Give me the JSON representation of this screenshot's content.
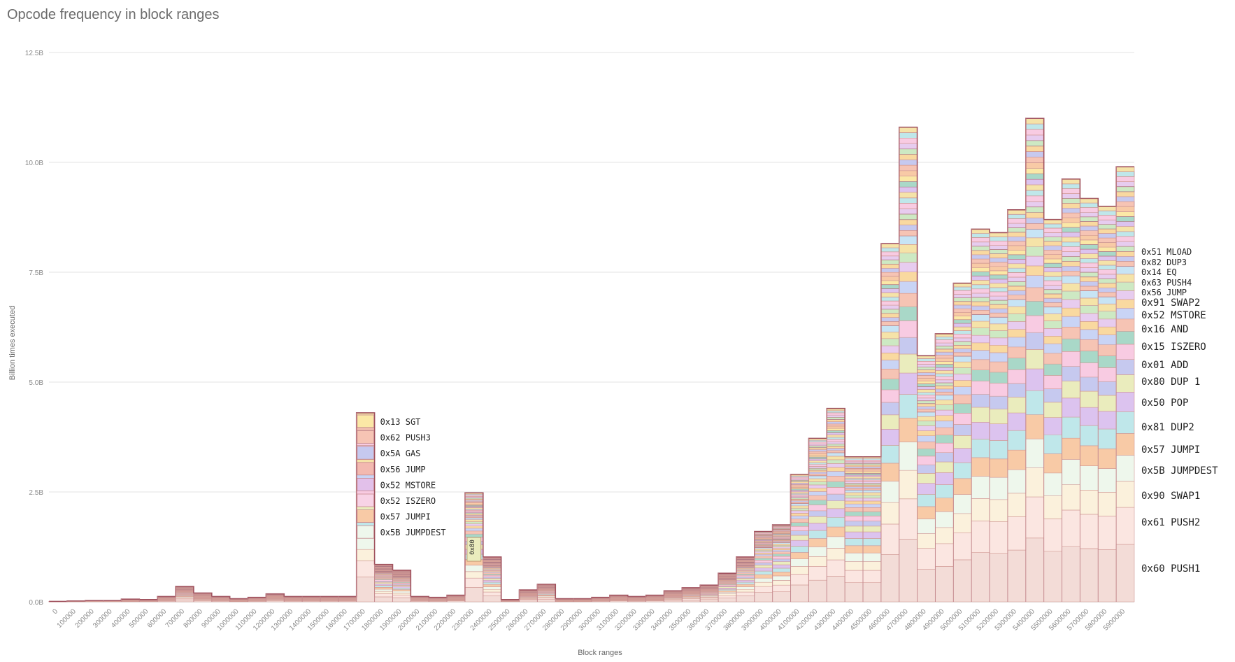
{
  "chart_data": {
    "type": "area",
    "stacked": true,
    "step": true,
    "title": "Opcode frequency in block ranges",
    "xlabel": "Block ranges",
    "ylabel": "Billion times executed",
    "ylim": [
      0,
      12.5
    ],
    "yticks": [
      "0.0B",
      "2.5B",
      "5.0B",
      "7.5B",
      "10.0B",
      "12.5B"
    ],
    "ytick_values": [
      0,
      2.5,
      5,
      7.5,
      10,
      12.5
    ],
    "grid": true,
    "categories": [
      "0",
      "100000",
      "200000",
      "300000",
      "400000",
      "500000",
      "600000",
      "700000",
      "800000",
      "900000",
      "1000000",
      "1100000",
      "1200000",
      "1300000",
      "1400000",
      "1500000",
      "1600000",
      "1700000",
      "1800000",
      "1900000",
      "2000000",
      "2100000",
      "2200000",
      "2300000",
      "2400000",
      "2500000",
      "2600000",
      "2700000",
      "2800000",
      "2900000",
      "3000000",
      "3100000",
      "3200000",
      "3300000",
      "3400000",
      "3500000",
      "3600000",
      "3700000",
      "3800000",
      "3900000",
      "4000000",
      "4100000",
      "4200000",
      "4300000",
      "4400000",
      "4500000",
      "4600000",
      "4700000",
      "4800000",
      "4900000",
      "5000000",
      "5100000",
      "5200000",
      "5300000",
      "5400000",
      "5500000",
      "5600000",
      "5700000",
      "5800000",
      "5900000"
    ],
    "totals": [
      0.01,
      0.02,
      0.03,
      0.03,
      0.06,
      0.05,
      0.12,
      0.35,
      0.2,
      0.12,
      0.07,
      0.1,
      0.18,
      0.12,
      0.12,
      0.12,
      0.12,
      4.3,
      0.85,
      0.72,
      0.12,
      0.1,
      0.15,
      2.48,
      1.02,
      0.05,
      0.27,
      0.4,
      0.07,
      0.07,
      0.1,
      0.15,
      0.12,
      0.15,
      0.25,
      0.32,
      0.38,
      0.65,
      1.02,
      1.6,
      1.75,
      2.9,
      3.72,
      4.4,
      3.3,
      3.3,
      8.15,
      10.8,
      5.6,
      6.1,
      7.25,
      8.48,
      8.4,
      8.92,
      11.0,
      8.7,
      9.62,
      9.18,
      9.0,
      9.9
    ],
    "series": [
      {
        "name": "0x60 PUSH1",
        "share": 0.132,
        "color": "#f3dcd7"
      },
      {
        "name": "0x61 PUSH2",
        "share": 0.085,
        "color": "#fbe6e1"
      },
      {
        "name": "0x90 SWAP1",
        "share": 0.06,
        "color": "#fbf1dc"
      },
      {
        "name": "0x5B JUMPDEST",
        "share": 0.06,
        "color": "#eef7ec"
      },
      {
        "name": "0x57 JUMPI",
        "share": 0.05,
        "color": "#f8caa6"
      },
      {
        "name": "0x81 DUP2",
        "share": 0.05,
        "color": "#bfe7ea"
      },
      {
        "name": "0x50 POP",
        "share": 0.045,
        "color": "#dcc3ef"
      },
      {
        "name": "0x80 DUP 1",
        "share": 0.04,
        "color": "#eaecbd"
      },
      {
        "name": "0x01 ADD",
        "share": 0.035,
        "color": "#c6c9ef"
      },
      {
        "name": "0x15 ISZERO",
        "share": 0.035,
        "color": "#f8cbe2"
      },
      {
        "name": "0x16 AND",
        "share": 0.03,
        "color": "#a9d8c8"
      },
      {
        "name": "0x52 MSTORE",
        "share": 0.028,
        "color": "#f6c4b4"
      },
      {
        "name": "0x91 SWAP2",
        "share": 0.025,
        "color": "#c9d4f5"
      },
      {
        "name": "0x56 JUMP",
        "share": 0.02,
        "color": "#f9d9a0"
      },
      {
        "name": "0x63 PUSH4",
        "share": 0.02,
        "color": "#e7ccef"
      },
      {
        "name": "0x14 EQ",
        "share": 0.02,
        "color": "#cde9c3"
      },
      {
        "name": "0x82 DUP3",
        "share": 0.018,
        "color": "#f5e3a8"
      },
      {
        "name": "0x51 MLOAD",
        "share": 0.018,
        "color": "#c7e4f5"
      }
    ],
    "peak_labels": [
      "0x13 SGT",
      "0x62 PUSH3",
      "0x5A GAS",
      "0x56 JUMP",
      "0x52 MSTORE",
      "0x52 ISZERO",
      "0x57 JUMPI",
      "0x5B JUMPDEST"
    ],
    "peak_label_colors": [
      "#fbe8a6",
      "#f6c4b4",
      "#c6c9ef",
      "#f3b9b0",
      "#e2c0ea",
      "#f8d3e6",
      "#f8caa6",
      "#eef7ec"
    ],
    "mini_label": "0x80",
    "right_labels": [
      "0x51 MLOAD",
      "0x82 DUP3",
      "0x14 EQ",
      "0x63 PUSH4",
      "0x56 JUMP",
      "0x91 SWAP2",
      "0x52 MSTORE",
      "0x16 AND",
      "0x15 ISZERO",
      "0x01 ADD",
      "0x80 DUP 1",
      "0x50 POP",
      "0x81 DUP2",
      "0x57 JUMPI",
      "0x5B JUMPDEST",
      "0x90 SWAP1",
      "0x61 PUSH2",
      "0x60 PUSH1"
    ]
  }
}
